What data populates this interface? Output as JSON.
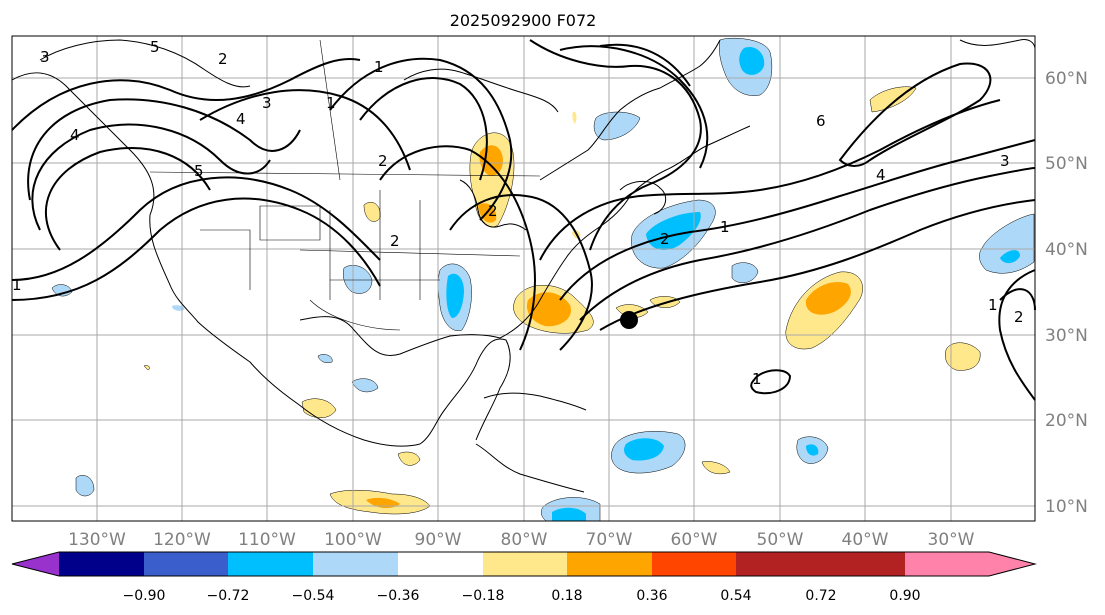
{
  "title": "2025092900 F072",
  "map": {
    "lon_labels": [
      "130°W",
      "120°W",
      "110°W",
      "100°W",
      "90°W",
      "80°W",
      "70°W",
      "60°W",
      "50°W",
      "40°W",
      "30°W"
    ],
    "lat_labels": [
      "60°N",
      "50°N",
      "40°N",
      "30°N",
      "20°N",
      "10°N"
    ],
    "contour_labels": [
      "3",
      "5",
      "4",
      "3",
      "2",
      "4",
      "1",
      "1",
      "2",
      "5",
      "2",
      "2",
      "1",
      "2",
      "1",
      "6",
      "4",
      "3",
      "1",
      "2",
      "1"
    ]
  },
  "colorbar": {
    "tick_labels": [
      "−0.90",
      "−0.72",
      "−0.54",
      "−0.36",
      "−0.18",
      "0.18",
      "0.36",
      "0.54",
      "0.72",
      "0.90"
    ],
    "colors": [
      "#9932cc",
      "#00008b",
      "#3a5fcd",
      "#00bfff",
      "#add8f7",
      "#ffffff",
      "#ffe88c",
      "#ffa500",
      "#ff4500",
      "#b22222",
      "#ff82ab"
    ]
  },
  "colors": {
    "strong_negative": "#00bfff",
    "weak_negative": "#add8f7",
    "weak_positive": "#ffe88c",
    "strong_positive": "#ffa500",
    "contour": "#000000",
    "grid": "#a9a9a9"
  }
}
